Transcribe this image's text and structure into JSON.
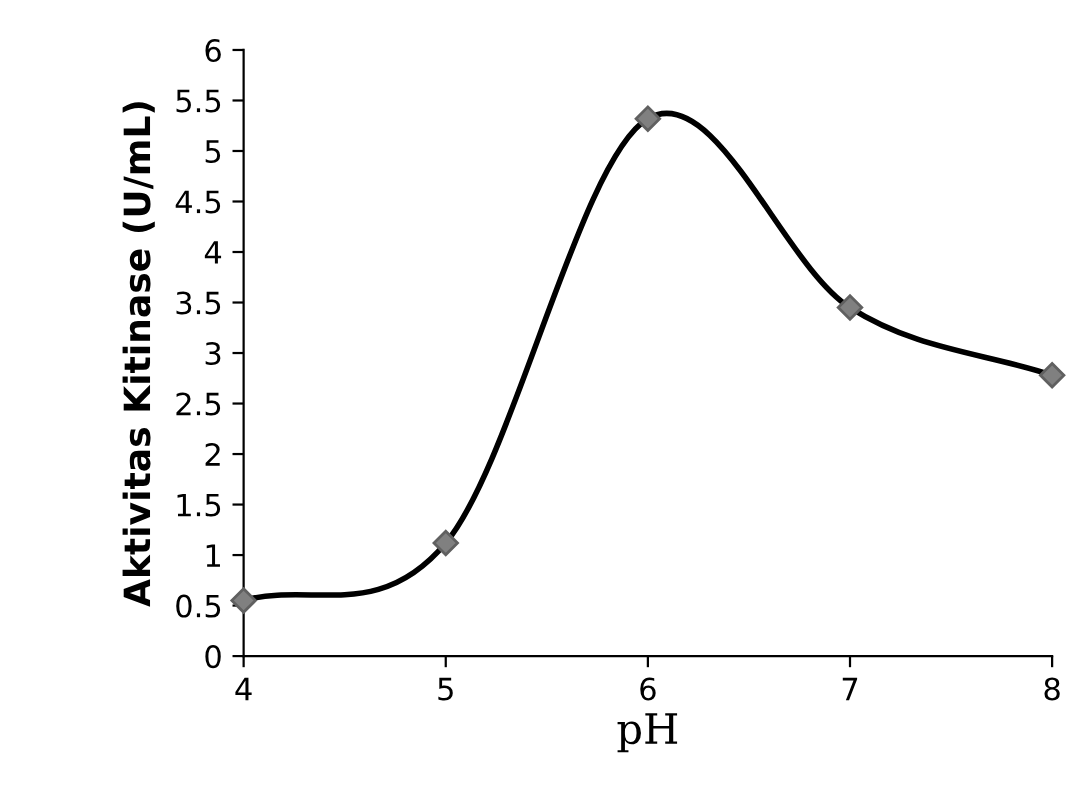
{
  "chart_data": {
    "type": "line",
    "xlabel": "pH",
    "ylabel": "Aktivitas Kitinase (U/mL)",
    "x": [
      4,
      5,
      6,
      7,
      8
    ],
    "series": [
      {
        "color": "#000000",
        "values": [
          0.55,
          1.12,
          5.32,
          3.45,
          2.78
        ]
      }
    ],
    "marker": "diamond",
    "line_style": "solid",
    "grid": false,
    "legend": false,
    "xlim": [
      4,
      8
    ],
    "xticks": [
      4,
      5,
      6,
      7,
      8
    ],
    "ylim": [
      0,
      6
    ],
    "yticks": [
      0,
      0.5,
      1,
      1.5,
      2,
      2.5,
      3,
      3.5,
      4,
      4.5,
      5,
      5.5,
      6
    ]
  }
}
